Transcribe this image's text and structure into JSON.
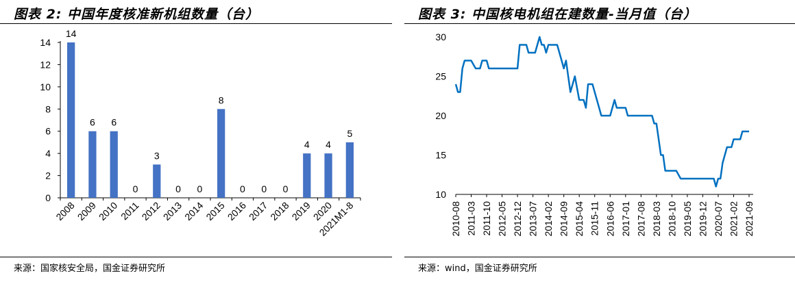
{
  "charts": [
    {
      "title": "图表 2:  中国年度核准新机组数量（台）",
      "source": "来源：国家核安全局，国金证券研究所"
    },
    {
      "title": "图表 3:  中国核电机组在建数量-当月值（台）",
      "source": "来源：wind，国金证券研究所"
    }
  ],
  "colors": {
    "bar": "#4472C4",
    "line": "#0070C0",
    "axis": "#000000",
    "grid": "#D9D9D9"
  },
  "chart_data": [
    {
      "type": "bar",
      "title": "中国年度核准新机组数量（台）",
      "categories": [
        "2008",
        "2009",
        "2010",
        "2011",
        "2012",
        "2013",
        "2014",
        "2015",
        "2016",
        "2017",
        "2018",
        "2019",
        "2020",
        "2021M1-8"
      ],
      "values": [
        14,
        6,
        6,
        0,
        3,
        0,
        0,
        8,
        0,
        0,
        0,
        4,
        4,
        5
      ],
      "yticks": [
        0,
        2,
        4,
        6,
        8,
        10,
        12,
        14
      ],
      "ylim": [
        0,
        14
      ],
      "data_labels": true,
      "grid": false,
      "legend": "none"
    },
    {
      "type": "line",
      "title": "中国核电机组在建数量-当月值（台）",
      "x_ticks": [
        "2010-08",
        "2011-03",
        "2011-10",
        "2012-05",
        "2012-12",
        "2013-07",
        "2014-02",
        "2014-09",
        "2015-04",
        "2015-11",
        "2016-06",
        "2017-01",
        "2017-08",
        "2018-03",
        "2018-10",
        "2019-05",
        "2019-12",
        "2020-07",
        "2021-02",
        "2021-09"
      ],
      "x": [
        "2010-08",
        "2010-09",
        "2010-10",
        "2010-11",
        "2010-12",
        "2011-01",
        "2011-03",
        "2011-05",
        "2011-07",
        "2011-08",
        "2011-10",
        "2011-11",
        "2011-12",
        "2012-01",
        "2012-02",
        "2012-03",
        "2012-05",
        "2012-07",
        "2012-10",
        "2012-12",
        "2013-01",
        "2013-03",
        "2013-04",
        "2013-05",
        "2013-07",
        "2013-08",
        "2013-10",
        "2013-11",
        "2013-12",
        "2014-01",
        "2014-02",
        "2014-04",
        "2014-05",
        "2014-06",
        "2014-08",
        "2014-09",
        "2014-10",
        "2014-11",
        "2014-12",
        "2015-01",
        "2015-02",
        "2015-04",
        "2015-06",
        "2015-07",
        "2015-08",
        "2015-09",
        "2015-10",
        "2015-11",
        "2016-01",
        "2016-02",
        "2016-03",
        "2016-04",
        "2016-06",
        "2016-07",
        "2016-08",
        "2016-09",
        "2016-10",
        "2016-11",
        "2016-12",
        "2017-01",
        "2017-02",
        "2017-05",
        "2017-06",
        "2017-07",
        "2017-08",
        "2017-10",
        "2018-01",
        "2018-02",
        "2018-03",
        "2018-04",
        "2018-05",
        "2018-06",
        "2018-07",
        "2018-08",
        "2018-09",
        "2018-10",
        "2018-12",
        "2019-02",
        "2019-05",
        "2019-07",
        "2019-09",
        "2019-12",
        "2020-03",
        "2020-05",
        "2020-06",
        "2020-07",
        "2020-08",
        "2020-09",
        "2020-10",
        "2020-11",
        "2020-12",
        "2021-01",
        "2021-02",
        "2021-03",
        "2021-04",
        "2021-05",
        "2021-06",
        "2021-07",
        "2021-08",
        "2021-09"
      ],
      "values": [
        24,
        23,
        23,
        26,
        27,
        27,
        27,
        26,
        26,
        27,
        27,
        26,
        26,
        26,
        26,
        26,
        26,
        26,
        26,
        26,
        29,
        29,
        29,
        28,
        28,
        28,
        30,
        29,
        29,
        28,
        29,
        29,
        29,
        29,
        27,
        26,
        27,
        25,
        23,
        24,
        25,
        22,
        22,
        21,
        24,
        24,
        24,
        23,
        21,
        20,
        20,
        20,
        20,
        21,
        22,
        21,
        21,
        21,
        21,
        21,
        20,
        20,
        20,
        20,
        20,
        20,
        20,
        19,
        19,
        17,
        15,
        15,
        13,
        13,
        13,
        13,
        13,
        12,
        12,
        12,
        12,
        12,
        12,
        12,
        11,
        12,
        12,
        14,
        15,
        16,
        16,
        16,
        17,
        17,
        17,
        17,
        18,
        18,
        18,
        18
      ],
      "yticks": [
        10,
        15,
        20,
        25,
        30
      ],
      "ylim": [
        10,
        30
      ],
      "grid": false,
      "legend": "none"
    }
  ]
}
